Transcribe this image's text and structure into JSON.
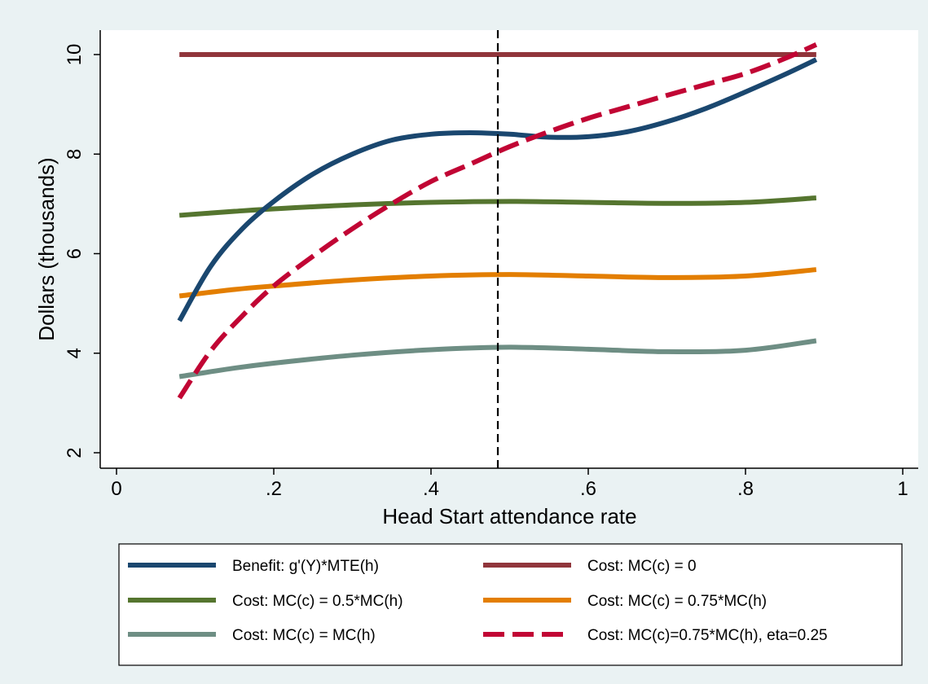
{
  "chart_data": {
    "type": "line",
    "title": "",
    "xlabel": "Head Start attendance rate",
    "ylabel": "Dollars (thousands)",
    "xlim": [
      0,
      1
    ],
    "ylim": [
      2,
      10
    ],
    "xticks": [
      0,
      0.2,
      0.4,
      0.6,
      0.8,
      1
    ],
    "xtick_labels": [
      "0",
      ".2",
      ".4",
      ".6",
      ".8",
      "1"
    ],
    "yticks": [
      2,
      4,
      6,
      8,
      10
    ],
    "ytick_labels": [
      "2",
      "4",
      "6",
      "8",
      "10"
    ],
    "grid": false,
    "legend_position": "bottom",
    "reference_line": {
      "orientation": "vertical",
      "x": 0.485,
      "style": "dashed",
      "color": "#000000"
    },
    "series": [
      {
        "name": "Benefit: g'(Y)*MTE(h)",
        "color": "#1a476f",
        "style": "solid",
        "x": [
          0.08,
          0.12,
          0.16,
          0.2,
          0.25,
          0.3,
          0.35,
          0.4,
          0.45,
          0.5,
          0.55,
          0.6,
          0.65,
          0.7,
          0.75,
          0.8,
          0.85,
          0.89
        ],
        "y": [
          4.65,
          5.75,
          6.5,
          7.05,
          7.6,
          8.0,
          8.28,
          8.4,
          8.43,
          8.4,
          8.34,
          8.35,
          8.45,
          8.65,
          8.92,
          9.25,
          9.6,
          9.9
        ]
      },
      {
        "name": "Cost: MC(c) = 0",
        "color": "#90353b",
        "style": "solid",
        "x": [
          0.08,
          0.89
        ],
        "y": [
          10.0,
          10.0
        ]
      },
      {
        "name": "Cost: MC(c) = 0.5*MC(h)",
        "color": "#55752f",
        "style": "solid",
        "x": [
          0.08,
          0.15,
          0.2,
          0.3,
          0.4,
          0.5,
          0.6,
          0.7,
          0.8,
          0.89
        ],
        "y": [
          6.77,
          6.85,
          6.9,
          6.98,
          7.03,
          7.05,
          7.03,
          7.01,
          7.03,
          7.12
        ]
      },
      {
        "name": "Cost: MC(c) = 0.75*MC(h)",
        "color": "#e37e00",
        "style": "solid",
        "x": [
          0.08,
          0.15,
          0.2,
          0.3,
          0.4,
          0.5,
          0.6,
          0.7,
          0.8,
          0.89
        ],
        "y": [
          5.15,
          5.28,
          5.35,
          5.47,
          5.55,
          5.58,
          5.55,
          5.52,
          5.55,
          5.68
        ]
      },
      {
        "name": "Cost: MC(c) = MC(h)",
        "color": "#6e8e84",
        "style": "solid",
        "x": [
          0.08,
          0.15,
          0.2,
          0.3,
          0.4,
          0.5,
          0.6,
          0.7,
          0.8,
          0.89
        ],
        "y": [
          3.53,
          3.7,
          3.8,
          3.96,
          4.07,
          4.12,
          4.08,
          4.03,
          4.06,
          4.25
        ]
      },
      {
        "name": "Cost: MC(c)=0.75*MC(h), eta=0.25",
        "color": "#c10534",
        "style": "dashed",
        "x": [
          0.08,
          0.12,
          0.16,
          0.2,
          0.25,
          0.3,
          0.35,
          0.4,
          0.45,
          0.5,
          0.55,
          0.6,
          0.65,
          0.7,
          0.75,
          0.8,
          0.85,
          0.89
        ],
        "y": [
          3.1,
          4.05,
          4.75,
          5.35,
          5.95,
          6.5,
          7.0,
          7.45,
          7.8,
          8.15,
          8.45,
          8.72,
          8.95,
          9.18,
          9.4,
          9.62,
          9.92,
          10.2
        ]
      }
    ],
    "legend_layout": [
      [
        0,
        1
      ],
      [
        2,
        3
      ],
      [
        4,
        5
      ]
    ]
  }
}
